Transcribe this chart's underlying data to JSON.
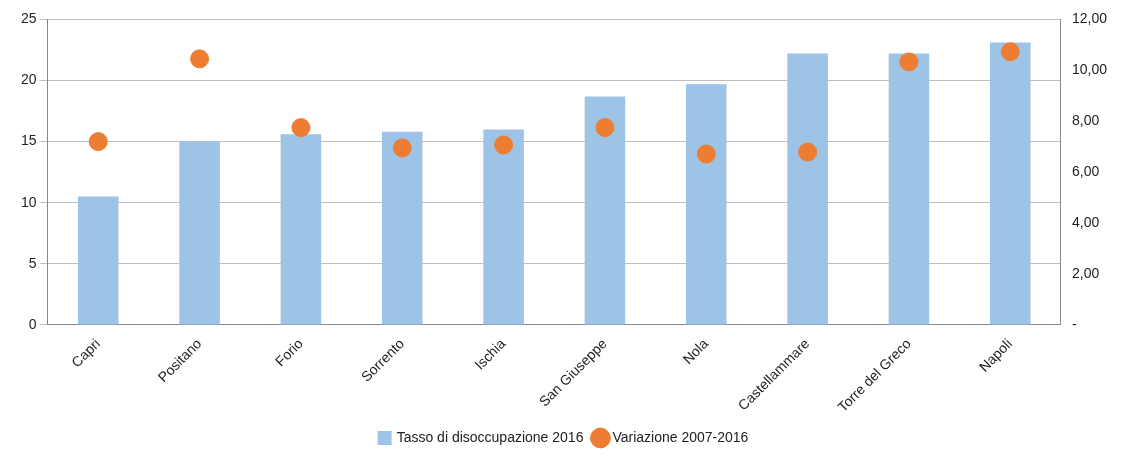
{
  "chart_data": {
    "type": "bar",
    "categories": [
      "Capri",
      "Positano",
      "Forio",
      "Sorrento",
      "Ischia",
      "San Giuseppe",
      "Nola",
      "Castellammare",
      "Torre del Greco",
      "Napoli"
    ],
    "series": [
      {
        "name": "Tasso di disoccupazione 2016",
        "color": "#9dc3e6",
        "values": [
          10.5,
          15.0,
          15.6,
          15.8,
          16.0,
          18.7,
          19.7,
          22.2,
          22.2,
          23.1
        ]
      },
      {
        "name": "Variazione 2007-2016",
        "type": "scatter",
        "axis": "y2",
        "color": "#ed7d31",
        "marker": "circle",
        "values": [
          7.2,
          10.45,
          7.75,
          6.95,
          7.07,
          7.75,
          6.71,
          6.79,
          10.33,
          10.73
        ]
      }
    ],
    "ylim": [
      0,
      25
    ],
    "yticks": [
      0,
      5,
      10,
      15,
      20,
      25
    ],
    "y2lim": [
      0,
      12
    ],
    "y2ticks": [
      {
        "value": 0,
        "label": "-"
      },
      {
        "value": 2,
        "label": "2,00"
      },
      {
        "value": 4,
        "label": "4,00"
      },
      {
        "value": 6,
        "label": "6,00"
      },
      {
        "value": 8,
        "label": "8,00"
      },
      {
        "value": 10,
        "label": "10,00"
      },
      {
        "value": 12,
        "label": "12,00"
      }
    ],
    "grid": "y",
    "legend": "bottom"
  }
}
